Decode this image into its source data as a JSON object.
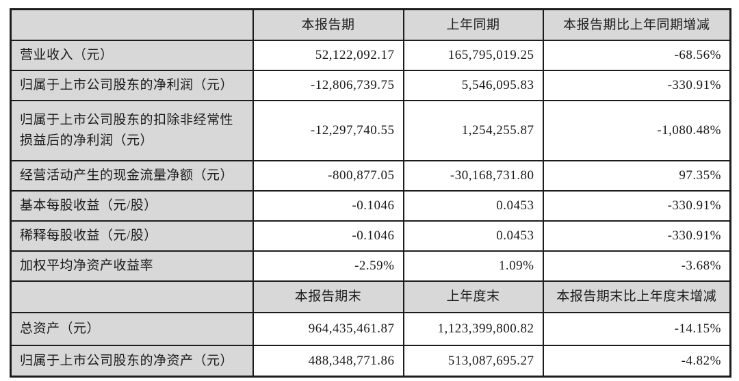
{
  "table": {
    "period_header": {
      "corner": "",
      "current": "本报告期",
      "prior": "上年同期",
      "change": "本报告期比上年同期增减"
    },
    "period_rows": [
      {
        "label": "营业收入（元）",
        "current": "52,122,092.17",
        "prior": "165,795,019.25",
        "change": "-68.56%"
      },
      {
        "label": "归属于上市公司股东的净利润（元）",
        "current": "-12,806,739.75",
        "prior": "5,546,095.83",
        "change": "-330.91%"
      },
      {
        "label": "归属于上市公司股东的扣除非经常性损益后的净利润（元）",
        "current": "-12,297,740.55",
        "prior": "1,254,255.87",
        "change": "-1,080.48%"
      },
      {
        "label": "经营活动产生的现金流量净额（元）",
        "current": "-800,877.05",
        "prior": "-30,168,731.80",
        "change": "97.35%"
      },
      {
        "label": "基本每股收益（元/股）",
        "current": "-0.1046",
        "prior": "0.0453",
        "change": "-330.91%"
      },
      {
        "label": "稀释每股收益（元/股）",
        "current": "-0.1046",
        "prior": "0.0453",
        "change": "-330.91%"
      },
      {
        "label": "加权平均净资产收益率",
        "current": "-2.59%",
        "prior": "1.09%",
        "change": "-3.68%"
      }
    ],
    "yearend_header": {
      "corner": "",
      "current": "本报告期末",
      "prior": "上年度末",
      "change": "本报告期末比上年度末增减"
    },
    "yearend_rows": [
      {
        "label": "总资产（元）",
        "current": "964,435,461.87",
        "prior": "1,123,399,800.82",
        "change": "-14.15%"
      },
      {
        "label": "归属于上市公司股东的净资产（元）",
        "current": "488,348,771.86",
        "prior": "513,087,695.27",
        "change": "-4.82%"
      }
    ],
    "colors": {
      "header_bg": "#d8d8d8",
      "cell_bg": "#ffffff",
      "border": "#1c1c1c",
      "text": "#1a1a1a"
    }
  }
}
